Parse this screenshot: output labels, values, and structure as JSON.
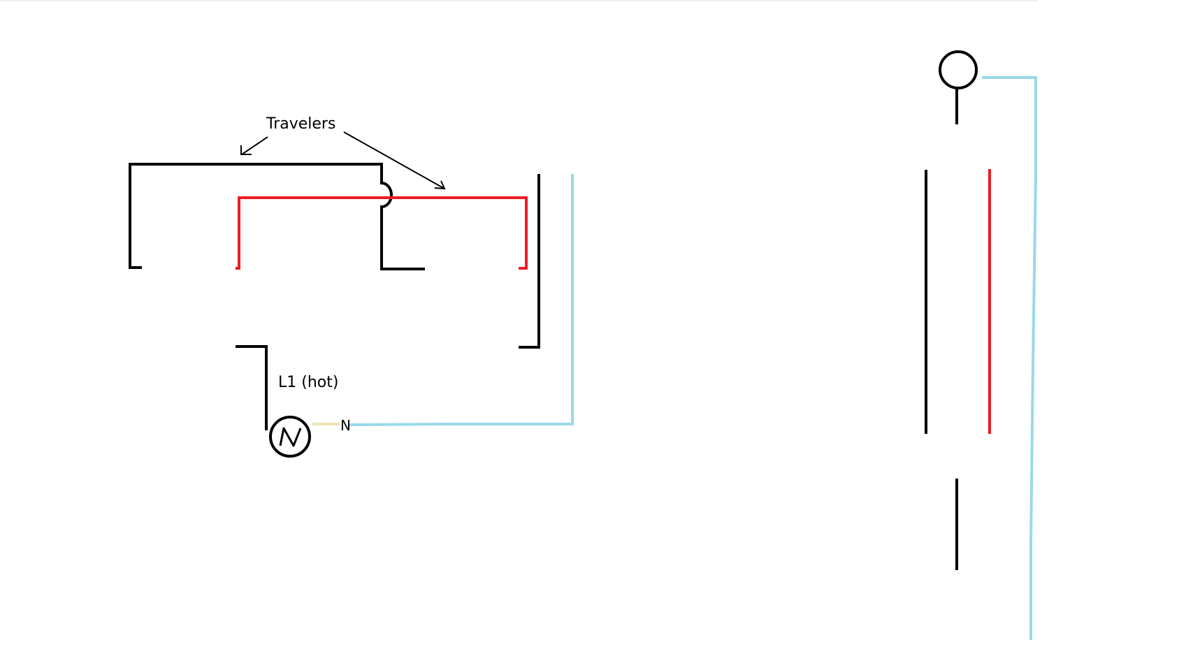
{
  "labels": {
    "travelers": "Travelers",
    "hot": "L1 (hot)",
    "neutral": "N"
  },
  "colors": {
    "background": "#ffffff",
    "black_wire": "#000000",
    "red_wire": "#ed1c24",
    "neutral_wire": "#99d9ea",
    "source_lead": "#efe4b0",
    "top_edge": "#eeeeee"
  },
  "icons": {
    "source": "ac-source-icon",
    "light": "light-fixture-icon"
  }
}
